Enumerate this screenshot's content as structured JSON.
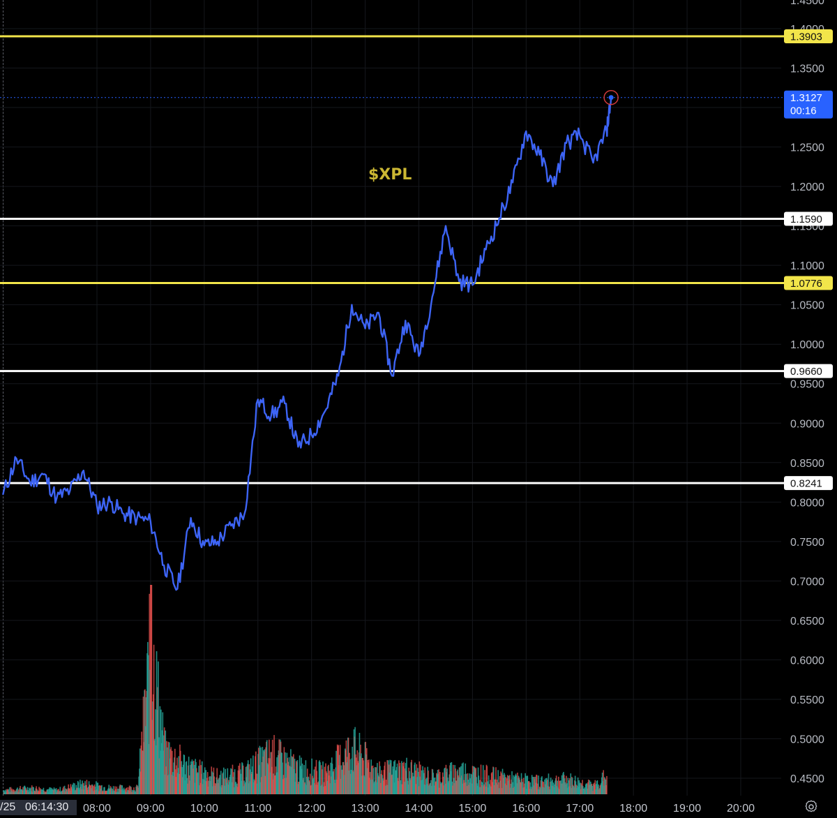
{
  "chart_data": {
    "type": "line",
    "title": "$XPL",
    "title_color": "#cbb733",
    "line_color": "#3d64f5",
    "y_axis": {
      "ticks": [
        "1.4000",
        "1.3500",
        "1.3000",
        "1.2500",
        "1.2000",
        "1.1500",
        "1.1000",
        "1.0500",
        "1.0000",
        "0.9500",
        "0.9000",
        "0.8500",
        "0.8000",
        "0.7500",
        "0.7000",
        "0.6500",
        "0.6000",
        "0.5500",
        "0.5000",
        "0.4500"
      ],
      "top_partial_tick": "1.4500",
      "range": [
        0.43,
        1.42
      ]
    },
    "x_axis": {
      "ticks": [
        "08:00",
        "09:00",
        "10:00",
        "11:00",
        "12:00",
        "13:00",
        "14:00",
        "15:00",
        "16:00",
        "17:00",
        "18:00",
        "19:00",
        "20:00"
      ],
      "crosshair_date_prefix": "/25",
      "crosshair_time": "06:14:30",
      "range": [
        "06:15",
        "20:30"
      ]
    },
    "current_price": {
      "value": 1.3127,
      "label": "1.3127",
      "countdown": "00:16",
      "color": "#2962ff"
    },
    "horizontal_levels": [
      {
        "value": 1.3903,
        "label": "1.3903",
        "color": "#f2e54a"
      },
      {
        "value": 1.159,
        "label": "1.1590",
        "color": "#ffffff"
      },
      {
        "value": 1.0776,
        "label": "1.0776",
        "color": "#f2e54a"
      },
      {
        "value": 0.966,
        "label": "0.9660",
        "color": "#ffffff"
      },
      {
        "value": 0.8241,
        "label": "0.8241",
        "color": "#ffffff"
      }
    ],
    "price_series": {
      "time": [
        "06:15",
        "06:30",
        "06:45",
        "07:00",
        "07:15",
        "07:30",
        "07:45",
        "08:00",
        "08:15",
        "08:30",
        "08:45",
        "09:00",
        "09:15",
        "09:30",
        "09:45",
        "10:00",
        "10:15",
        "10:30",
        "10:45",
        "11:00",
        "11:15",
        "11:30",
        "11:45",
        "12:00",
        "12:15",
        "12:30",
        "12:45",
        "13:00",
        "13:15",
        "13:30",
        "13:45",
        "14:00",
        "14:15",
        "14:30",
        "14:45",
        "15:00",
        "15:15",
        "15:30",
        "15:45",
        "16:00",
        "16:15",
        "16:30",
        "16:45",
        "17:00",
        "17:15",
        "17:30",
        "17:35"
      ],
      "values": [
        0.81,
        0.855,
        0.825,
        0.835,
        0.805,
        0.815,
        0.84,
        0.795,
        0.8,
        0.785,
        0.78,
        0.775,
        0.72,
        0.69,
        0.78,
        0.745,
        0.75,
        0.77,
        0.785,
        0.93,
        0.91,
        0.925,
        0.87,
        0.885,
        0.915,
        0.96,
        1.05,
        1.02,
        1.04,
        0.96,
        1.03,
        0.985,
        1.06,
        1.15,
        1.08,
        1.075,
        1.12,
        1.16,
        1.205,
        1.27,
        1.24,
        1.2,
        1.255,
        1.265,
        1.23,
        1.27,
        1.3127
      ]
    },
    "volume_series": {
      "up_color": "#26a69a",
      "down_color": "#ef5350",
      "time": [
        "06:15",
        "06:45",
        "07:15",
        "07:45",
        "08:15",
        "08:45",
        "09:00",
        "09:15",
        "09:45",
        "10:15",
        "10:45",
        "11:15",
        "11:45",
        "12:15",
        "12:45",
        "13:15",
        "13:45",
        "14:15",
        "14:45",
        "15:15",
        "15:45",
        "16:15",
        "16:45",
        "17:15",
        "17:30"
      ],
      "values": [
        0.02,
        0.03,
        0.02,
        0.05,
        0.03,
        0.03,
        0.7,
        0.2,
        0.12,
        0.08,
        0.1,
        0.19,
        0.12,
        0.1,
        0.22,
        0.1,
        0.12,
        0.08,
        0.11,
        0.09,
        0.07,
        0.06,
        0.07,
        0.04,
        0.09
      ]
    }
  },
  "ui": {
    "settings_icon": "gear-icon"
  }
}
